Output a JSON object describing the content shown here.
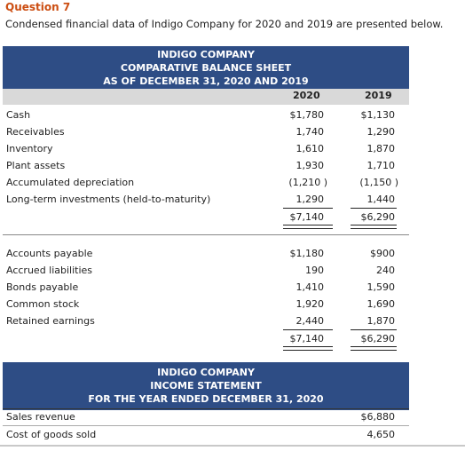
{
  "question": {
    "title": "Question 7",
    "text": "Condensed financial data of Indigo Company for 2020 and 2019 are presented below."
  },
  "balance_sheet": {
    "title_lines": [
      "INDIGO COMPANY",
      "COMPARATIVE BALANCE SHEET",
      "AS OF DECEMBER 31, 2020 AND 2019"
    ],
    "col_2020": "2020",
    "col_2019": "2019",
    "assets": [
      {
        "label": "Cash",
        "v2020": "$1,780",
        "v2019": "$1,130"
      },
      {
        "label": "Receivables",
        "v2020": "1,740",
        "v2019": "1,290"
      },
      {
        "label": "Inventory",
        "v2020": "1,610",
        "v2019": "1,870"
      },
      {
        "label": "Plant assets",
        "v2020": "1,930",
        "v2019": "1,710"
      },
      {
        "label": "Accumulated depreciation",
        "v2020": "(1,210 )",
        "v2019": "(1,150 )"
      },
      {
        "label": "Long-term investments (held-to-maturity)",
        "v2020": "1,290",
        "v2019": "1,440"
      }
    ],
    "assets_total": {
      "v2020": "$7,140",
      "v2019": "$6,290"
    },
    "liabilities": [
      {
        "label": "Accounts payable",
        "v2020": "$1,180",
        "v2019": "$900"
      },
      {
        "label": "Accrued liabilities",
        "v2020": "190",
        "v2019": "240"
      },
      {
        "label": "Bonds payable",
        "v2020": "1,410",
        "v2019": "1,590"
      },
      {
        "label": "Common stock",
        "v2020": "1,920",
        "v2019": "1,690"
      },
      {
        "label": "Retained earnings",
        "v2020": "2,440",
        "v2019": "1,870"
      }
    ],
    "liabilities_total": {
      "v2020": "$7,140",
      "v2019": "$6,290"
    }
  },
  "income_statement": {
    "title_lines": [
      "INDIGO COMPANY",
      "INCOME STATEMENT",
      "FOR THE YEAR ENDED DECEMBER 31, 2020"
    ],
    "rows": [
      {
        "label": "Sales revenue",
        "value": "$6,880"
      },
      {
        "label": "Cost of goods sold",
        "value": "4,650"
      }
    ]
  }
}
